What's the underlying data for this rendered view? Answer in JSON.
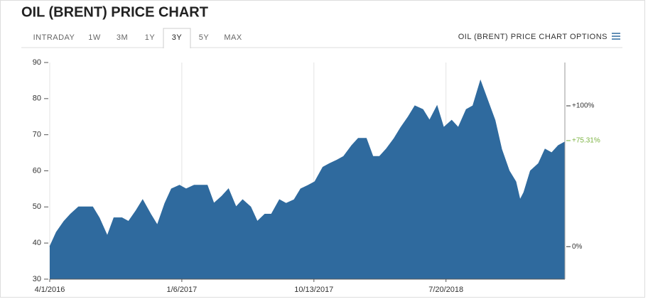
{
  "header": {
    "title": "OIL (BRENT) PRICE CHART",
    "tabs": [
      "INTRADAY",
      "1W",
      "3M",
      "1Y",
      "3Y",
      "5Y",
      "MAX"
    ],
    "active_tab": "3Y",
    "options": "OIL (BRENT) PRICE CHART OPTIONS"
  },
  "chart_data": {
    "type": "area",
    "color": "#2f6a9e",
    "grid": "x",
    "x": [
      "2016-04-01",
      "2016-04-15",
      "2016-05-01",
      "2016-05-15",
      "2016-06-01",
      "2016-06-15",
      "2016-07-01",
      "2016-07-15",
      "2016-08-01",
      "2016-08-15",
      "2016-09-01",
      "2016-09-15",
      "2016-10-01",
      "2016-10-15",
      "2016-11-01",
      "2016-11-15",
      "2016-12-01",
      "2016-12-15",
      "2017-01-01",
      "2017-01-15",
      "2017-02-01",
      "2017-02-15",
      "2017-03-01",
      "2017-03-15",
      "2017-04-01",
      "2017-04-15",
      "2017-05-01",
      "2017-05-15",
      "2017-06-01",
      "2017-06-15",
      "2017-07-01",
      "2017-07-15",
      "2017-08-01",
      "2017-08-15",
      "2017-09-01",
      "2017-09-15",
      "2017-10-01",
      "2017-10-15",
      "2017-11-01",
      "2017-11-15",
      "2017-12-01",
      "2017-12-15",
      "2018-01-01",
      "2018-01-15",
      "2018-02-01",
      "2018-02-15",
      "2018-03-01",
      "2018-03-15",
      "2018-04-01",
      "2018-04-15",
      "2018-05-01",
      "2018-05-15",
      "2018-06-01",
      "2018-06-15",
      "2018-07-01",
      "2018-07-15",
      "2018-08-01",
      "2018-08-15",
      "2018-09-01",
      "2018-09-15",
      "2018-10-01",
      "2018-10-15",
      "2018-11-01",
      "2018-11-15",
      "2018-12-01",
      "2018-12-15",
      "2018-12-24",
      "2019-01-01",
      "2019-01-15",
      "2019-02-01",
      "2019-02-15",
      "2019-03-01",
      "2019-03-15",
      "2019-03-29"
    ],
    "values": [
      39,
      43,
      46,
      48,
      50,
      50,
      50,
      47,
      42,
      47,
      47,
      46,
      49,
      52,
      48,
      45,
      51,
      55,
      56,
      55,
      56,
      56,
      56,
      51,
      53,
      55,
      50,
      52,
      50,
      46,
      48,
      48,
      52,
      51,
      52,
      55,
      56,
      57,
      61,
      62,
      63,
      64,
      67,
      69,
      69,
      64,
      64,
      66,
      69,
      72,
      75,
      78,
      77,
      74,
      78,
      72,
      74,
      72,
      77,
      78,
      85,
      80,
      74,
      66,
      60,
      57,
      52,
      54,
      60,
      62,
      66,
      65,
      67,
      68
    ],
    "xlim": [
      "2016-04-01",
      "2019-03-29"
    ],
    "xticks": [
      {
        "value": "2016-04-01",
        "label": "4/1/2016"
      },
      {
        "value": "2017-01-06",
        "label": "1/6/2017"
      },
      {
        "value": "2017-10-13",
        "label": "10/13/2017"
      },
      {
        "value": "2018-07-20",
        "label": "7/20/2018"
      }
    ],
    "ylim": [
      30,
      90
    ],
    "yticks": [
      30,
      40,
      50,
      60,
      70,
      80,
      90
    ],
    "y2lim": [
      -23.08,
      130.77
    ],
    "y2ticks": [
      {
        "value": 0,
        "label": "0%"
      },
      {
        "value": 100,
        "label": "+100%"
      }
    ],
    "last_change": {
      "value": 75.31,
      "label": "+75.31%",
      "color": "#7cb342"
    }
  }
}
